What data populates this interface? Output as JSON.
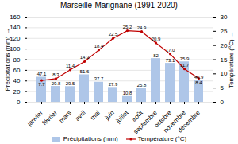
{
  "chart_data": {
    "type": "bar",
    "title": "Marseille-Marignane (1991-2020)",
    "categories": [
      "janvier",
      "février",
      "mars",
      "avril",
      "mai",
      "juin",
      "juillet",
      "août",
      "septembre",
      "octobre",
      "novembre",
      "décembre"
    ],
    "series": [
      {
        "name": "Précipitations (mm)",
        "type": "bar",
        "color": "#aec6e8",
        "values": [
          47.1,
          29.8,
          29.5,
          51.6,
          37.7,
          27.9,
          10.8,
          25.8,
          82.0,
          73.1,
          75.9,
          40.9
        ]
      },
      {
        "name": "Température (°C)",
        "type": "line",
        "axis": "y2",
        "color": "#c00000",
        "marker": "circle",
        "values": [
          7.7,
          8.3,
          11.4,
          14.3,
          18.4,
          22.5,
          25.2,
          24.9,
          20.9,
          17.0,
          11.7,
          8.4
        ],
        "value_labels": [
          "7.7",
          "8.3",
          "11.4",
          "14.3",
          "18.4",
          "22.5",
          "25.2",
          "24.9",
          "20.9",
          "17.0",
          "11.7",
          "8.4"
        ]
      }
    ],
    "ylabel": "Précipitations (mm)",
    "y2label": "Température (°C)",
    "ylim": [
      0,
      160
    ],
    "yticks": [
      0,
      20,
      40,
      60,
      80,
      100,
      120,
      140,
      160
    ],
    "y2lim": [
      0,
      30
    ],
    "y2ticks": [
      0,
      5,
      10,
      15,
      20,
      25,
      30
    ],
    "grid": true,
    "legend": "bottom",
    "data_labels": true
  }
}
